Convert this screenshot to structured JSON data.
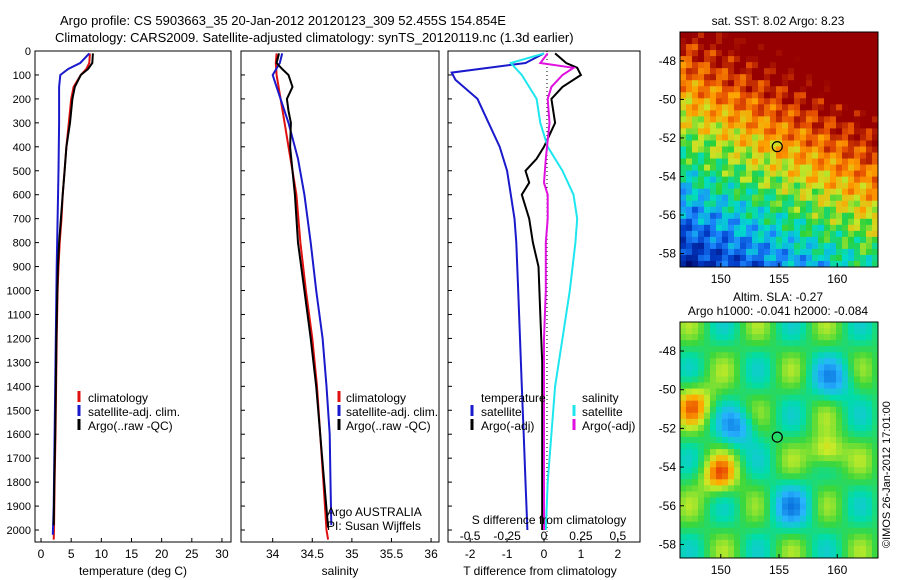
{
  "header": {
    "line1": "Argo profile: CS 5903663_35 20-Jan-2012 20120123_309 52.455S 154.854E",
    "line2": "Climatology: CARS2009. Satellite-adjusted climatology: synTS_20120119.nc (1.3d earlier)"
  },
  "colors": {
    "climatology": "#e01010",
    "satellite": "#1a1acc",
    "argo": "#000000",
    "sat_salinity": "#1ee6ee",
    "argo_salinity_adj": "#e010e0"
  },
  "chart_data": [
    {
      "type": "line",
      "id": "temperature",
      "xlabel": "temperature (deg C)",
      "ylabel": "",
      "xlim": [
        -1,
        31.5
      ],
      "ylim": [
        2050,
        0
      ],
      "xticks": [
        0,
        5,
        10,
        15,
        20,
        25,
        30
      ],
      "yticks": [
        0,
        100,
        200,
        300,
        400,
        500,
        600,
        700,
        800,
        900,
        1000,
        1100,
        1200,
        1300,
        1400,
        1500,
        1600,
        1700,
        1800,
        1900,
        2000
      ],
      "legend": [
        "climatology",
        "satellite-adj. clim.",
        "Argo(..raw -QC)"
      ],
      "series": [
        {
          "name": "climatology",
          "color": "#e01010",
          "points": [
            [
              8.1,
              10
            ],
            [
              8.0,
              50
            ],
            [
              7.5,
              75
            ],
            [
              6.6,
              100
            ],
            [
              5.4,
              150
            ],
            [
              5.0,
              200
            ],
            [
              4.6,
              300
            ],
            [
              4.2,
              400
            ],
            [
              3.9,
              500
            ],
            [
              3.6,
              600
            ],
            [
              3.4,
              700
            ],
            [
              3.1,
              800
            ],
            [
              2.9,
              900
            ],
            [
              2.75,
              1000
            ],
            [
              2.6,
              1200
            ],
            [
              2.5,
              1400
            ],
            [
              2.4,
              1600
            ],
            [
              2.25,
              1800
            ],
            [
              2.15,
              2000
            ],
            [
              2.1,
              2040
            ]
          ]
        },
        {
          "name": "satellite-adj. clim.",
          "color": "#1a1acc",
          "points": [
            [
              8.0,
              10
            ],
            [
              6.5,
              50
            ],
            [
              4.5,
              75
            ],
            [
              3.2,
              100
            ],
            [
              3.0,
              150
            ],
            [
              3.0,
              300
            ],
            [
              2.9,
              500
            ],
            [
              2.75,
              700
            ],
            [
              2.6,
              900
            ],
            [
              2.5,
              1100
            ],
            [
              2.4,
              1300
            ],
            [
              2.3,
              1500
            ],
            [
              2.2,
              1700
            ],
            [
              2.1,
              1900
            ],
            [
              1.95,
              2020
            ]
          ]
        },
        {
          "name": "Argo(..raw -QC)",
          "color": "#000000",
          "points": [
            [
              8.6,
              10
            ],
            [
              8.5,
              50
            ],
            [
              7.8,
              75
            ],
            [
              6.6,
              100
            ],
            [
              5.6,
              150
            ],
            [
              5.2,
              200
            ],
            [
              4.8,
              300
            ],
            [
              4.5,
              350
            ],
            [
              4.2,
              400
            ],
            [
              3.9,
              500
            ],
            [
              3.6,
              600
            ],
            [
              3.3,
              700
            ],
            [
              3.0,
              800
            ],
            [
              2.8,
              900
            ],
            [
              2.7,
              1000
            ],
            [
              2.55,
              1200
            ],
            [
              2.45,
              1400
            ],
            [
              2.35,
              1600
            ],
            [
              2.2,
              1800
            ],
            [
              2.1,
              1980
            ]
          ]
        }
      ]
    },
    {
      "type": "line",
      "id": "salinity",
      "xlabel": "salinity",
      "xlim": [
        33.6,
        36.1
      ],
      "ylim": [
        2050,
        0
      ],
      "xticks": [
        34,
        34.5,
        35,
        35.5,
        36
      ],
      "legend": [
        "climatology",
        "satellite-adj. clim.",
        "Argo(..raw -QC)"
      ],
      "annotation": [
        "Argo AUSTRALIA",
        "PI: Susan Wijffels"
      ],
      "series": [
        {
          "name": "climatology",
          "color": "#e01010",
          "points": [
            [
              34.05,
              10
            ],
            [
              34.04,
              50
            ],
            [
              34.05,
              100
            ],
            [
              34.1,
              200
            ],
            [
              34.15,
              300
            ],
            [
              34.2,
              400
            ],
            [
              34.25,
              500
            ],
            [
              34.3,
              600
            ],
            [
              34.35,
              800
            ],
            [
              34.42,
              1000
            ],
            [
              34.5,
              1200
            ],
            [
              34.56,
              1400
            ],
            [
              34.6,
              1600
            ],
            [
              34.64,
              1800
            ],
            [
              34.68,
              2000
            ],
            [
              34.7,
              2040
            ]
          ]
        },
        {
          "name": "satellite-adj. clim.",
          "color": "#1a1acc",
          "points": [
            [
              34.12,
              10
            ],
            [
              34.09,
              50
            ],
            [
              34.0,
              100
            ],
            [
              34.05,
              150
            ],
            [
              34.2,
              300
            ],
            [
              34.32,
              450
            ],
            [
              34.4,
              600
            ],
            [
              34.48,
              800
            ],
            [
              34.55,
              1000
            ],
            [
              34.63,
              1200
            ],
            [
              34.68,
              1400
            ],
            [
              34.72,
              1600
            ],
            [
              34.73,
              1800
            ],
            [
              34.74,
              1980
            ]
          ]
        },
        {
          "name": "Argo(..raw -QC)",
          "color": "#000000",
          "points": [
            [
              34.08,
              10
            ],
            [
              34.05,
              50
            ],
            [
              34.12,
              75
            ],
            [
              34.2,
              100
            ],
            [
              34.25,
              150
            ],
            [
              34.18,
              200
            ],
            [
              34.2,
              250
            ],
            [
              34.23,
              300
            ],
            [
              34.22,
              400
            ],
            [
              34.25,
              500
            ],
            [
              34.28,
              600
            ],
            [
              34.32,
              800
            ],
            [
              34.4,
              1000
            ],
            [
              34.48,
              1200
            ],
            [
              34.55,
              1400
            ],
            [
              34.6,
              1600
            ],
            [
              34.65,
              1800
            ],
            [
              34.7,
              1990
            ]
          ]
        }
      ]
    },
    {
      "type": "line",
      "id": "differences",
      "xlabel": "T difference from climatology",
      "x2label": "S difference from climatology",
      "xlim": [
        -2.6,
        2.6
      ],
      "ylim": [
        2050,
        0
      ],
      "xticks": [
        -2,
        -1,
        0,
        1,
        2
      ],
      "x2ticks": [
        "-0.5",
        "-0.25",
        "0",
        "0.25",
        "0.5"
      ],
      "legend_left_title": "temperature",
      "legend_right_title": "salinity",
      "legend": [
        "satellite",
        "Argo(-adj)",
        "satellite",
        "Argo(-adj)"
      ],
      "series": [
        {
          "name": "satellite",
          "group": "temperature",
          "color": "#1a1acc",
          "points": [
            [
              0.0,
              10
            ],
            [
              -0.5,
              50
            ],
            [
              -2.5,
              90
            ],
            [
              -2.4,
              120
            ],
            [
              -1.8,
              200
            ],
            [
              -1.5,
              300
            ],
            [
              -1.2,
              400
            ],
            [
              -1.0,
              500
            ],
            [
              -0.9,
              600
            ],
            [
              -0.8,
              700
            ],
            [
              -0.75,
              800
            ],
            [
              -0.7,
              1000
            ],
            [
              -0.65,
              1200
            ],
            [
              -0.6,
              1400
            ],
            [
              -0.55,
              1600
            ],
            [
              -0.5,
              1800
            ],
            [
              -0.45,
              2000
            ]
          ]
        },
        {
          "name": "Argo(-adj)",
          "group": "temperature",
          "color": "#000000",
          "points": [
            [
              0.3,
              10
            ],
            [
              0.6,
              50
            ],
            [
              0.9,
              70
            ],
            [
              1.0,
              100
            ],
            [
              0.5,
              150
            ],
            [
              0.2,
              200
            ],
            [
              0.3,
              300
            ],
            [
              0.0,
              400
            ],
            [
              -0.2,
              450
            ],
            [
              -0.5,
              500
            ],
            [
              -0.4,
              550
            ],
            [
              -0.6,
              600
            ],
            [
              -0.4,
              700
            ],
            [
              -0.3,
              800
            ],
            [
              -0.15,
              900
            ],
            [
              -0.1,
              1100
            ],
            [
              -0.05,
              1300
            ],
            [
              -0.05,
              1600
            ],
            [
              -0.05,
              2000
            ]
          ]
        },
        {
          "name": "satellite",
          "group": "salinity",
          "color": "#1ee6ee",
          "points": [
            [
              0.0,
              10
            ],
            [
              -0.9,
              50
            ],
            [
              -0.6,
              100
            ],
            [
              -0.2,
              200
            ],
            [
              -0.1,
              300
            ],
            [
              0.1,
              400
            ],
            [
              0.5,
              500
            ],
            [
              0.8,
              600
            ],
            [
              0.9,
              700
            ],
            [
              0.85,
              800
            ],
            [
              0.7,
              1000
            ],
            [
              0.5,
              1200
            ],
            [
              0.3,
              1400
            ],
            [
              0.2,
              1600
            ],
            [
              0.1,
              1800
            ],
            [
              0.05,
              2000
            ]
          ]
        },
        {
          "name": "Argo(-adj)",
          "group": "salinity",
          "color": "#e010e0",
          "points": [
            [
              0.1,
              10
            ],
            [
              -0.1,
              50
            ],
            [
              0.8,
              70
            ],
            [
              0.5,
              100
            ],
            [
              0.2,
              150
            ],
            [
              0.1,
              200
            ],
            [
              0.15,
              300
            ],
            [
              0.05,
              450
            ],
            [
              0.0,
              550
            ],
            [
              0.1,
              600
            ],
            [
              0.1,
              700
            ],
            [
              0.05,
              800
            ],
            [
              0.05,
              1000
            ],
            [
              0.0,
              1200
            ],
            [
              0.0,
              1500
            ],
            [
              0.0,
              1800
            ],
            [
              0.0,
              2000
            ]
          ]
        }
      ]
    },
    {
      "type": "heatmap",
      "id": "sst_map",
      "title": "sat. SST: 8.02  Argo: 8.23",
      "xticks": [
        150,
        155,
        160
      ],
      "yticks": [
        -48,
        -50,
        -52,
        -54,
        -56,
        -58
      ],
      "xlim": [
        146.5,
        163.5
      ],
      "ylim": [
        -58.7,
        -46.5
      ],
      "marker": [
        154.85,
        -52.45
      ]
    },
    {
      "type": "heatmap",
      "id": "sla_map",
      "title": "Altim. SLA: -0.27",
      "subtitle": "Argo h1000: -0.041  h2000: -0.084",
      "xticks": [
        150,
        155,
        160
      ],
      "yticks": [
        -48,
        -50,
        -52,
        -54,
        -56,
        -58
      ],
      "xlim": [
        146.5,
        163.5
      ],
      "ylim": [
        -58.7,
        -46.5
      ],
      "marker": [
        154.85,
        -52.45
      ],
      "credit": "©IMOS 26-Jan-2012 17:01:00"
    }
  ]
}
